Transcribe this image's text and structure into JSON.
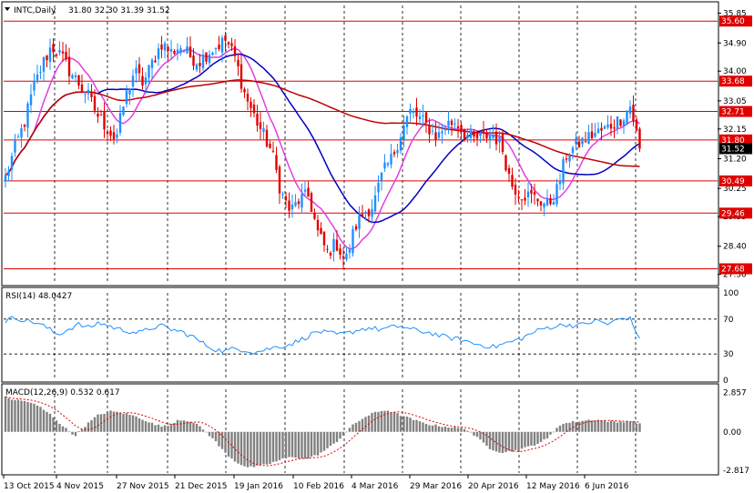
{
  "header": {
    "symbol": "INTC,Daily",
    "ohlc": "31.80 32.30 31.39 31.52"
  },
  "chart_data": {
    "type": "candlestick",
    "price_axis": {
      "ylim": [
        27.2,
        36.1
      ],
      "ticks": [
        "35.85",
        "34.90",
        "34.00",
        "33.05",
        "32.15",
        "31.20",
        "30.25",
        "29.35",
        "28.40",
        "27.50"
      ],
      "tick_values": [
        35.85,
        34.9,
        34.0,
        33.05,
        32.15,
        31.2,
        30.25,
        29.35,
        28.4,
        27.5
      ]
    },
    "horizontal_levels": [
      {
        "label": "35.60",
        "value": 35.6,
        "color": "#e00000"
      },
      {
        "label": "33.68",
        "value": 33.68,
        "color": "#e00000"
      },
      {
        "label": "32.71",
        "value": 32.71,
        "color": "#e00000"
      },
      {
        "label": "31.80",
        "value": 31.8,
        "color": "#e00000"
      },
      {
        "label": "30.49",
        "value": 30.49,
        "color": "#e00000"
      },
      {
        "label": "29.46",
        "value": 29.46,
        "color": "#e00000"
      },
      {
        "label": "27.68",
        "value": 27.68,
        "color": "#e00000"
      }
    ],
    "current_price": {
      "label": "31.52",
      "value": 31.52
    },
    "x_labels": [
      "13 Oct 2015",
      "4 Nov 2015",
      "27 Nov 2015",
      "21 Dec 2015",
      "19 Jan 2016",
      "10 Feb 2016",
      "4 Mar 2016",
      "29 Mar 2016",
      "20 Apr 2016",
      "12 May 2016",
      "6 Jun 2016"
    ],
    "close_anchors": [
      30.6,
      31.5,
      32.3,
      33.4,
      34.2,
      34.8,
      34.5,
      34.0,
      33.6,
      33.2,
      32.6,
      32.2,
      31.8,
      33.1,
      34.0,
      33.6,
      34.3,
      34.9,
      34.6,
      34.8,
      34.5,
      34.3,
      34.6,
      34.8,
      35.0,
      34.4,
      33.3,
      32.6,
      32.0,
      31.4,
      30.1,
      29.5,
      29.9,
      30.0,
      28.8,
      28.2,
      28.5,
      27.9,
      29.0,
      29.5,
      29.7,
      30.7,
      31.2,
      32.0,
      32.7,
      32.5,
      32.2,
      31.9,
      32.3,
      32.4,
      32.0,
      31.8,
      31.9,
      32.0,
      31.6,
      30.4,
      30.1,
      30.0,
      29.9,
      29.7,
      30.2,
      31.3,
      31.6,
      31.8,
      32.0,
      32.1,
      32.3,
      32.5,
      32.9,
      31.52
    ],
    "colors": {
      "up": "#1e90ff",
      "down": "#e00000",
      "ma_fast": "#e040e0",
      "ma_mid": "#0000c0",
      "ma_slow": "#c00000"
    },
    "rsi": {
      "label": "RSI(14) 48.0427",
      "ticks": [
        "100",
        "70",
        "30",
        "0"
      ],
      "tick_values": [
        100,
        70,
        30,
        0
      ],
      "levels": [
        70,
        30
      ],
      "anchors": [
        68,
        72,
        68,
        66,
        60,
        52,
        58,
        64,
        60,
        66,
        62,
        58,
        56,
        54,
        60,
        62,
        58,
        55,
        50,
        42,
        36,
        33,
        36,
        35,
        32,
        35,
        38,
        40,
        44,
        50,
        56,
        54,
        52,
        54,
        58,
        60,
        58,
        60,
        62,
        58,
        56,
        54,
        50,
        48,
        46,
        42,
        40,
        38,
        42,
        45,
        50,
        56,
        60,
        62,
        64,
        62,
        66,
        68,
        64,
        70,
        72,
        48
      ]
    },
    "macd": {
      "label": "MACD(12,26,9) 0.532 0.617",
      "ticks": [
        "2.857",
        "0.00",
        "-2.817"
      ],
      "tick_values": [
        2.857,
        0,
        -2.817
      ],
      "ylim": [
        -3.0,
        3.1
      ],
      "hist_anchors": [
        2.5,
        2.3,
        2.2,
        1.8,
        1.2,
        0.4,
        -0.3,
        0.5,
        1.2,
        1.5,
        1.4,
        1.2,
        0.9,
        0.5,
        0.4,
        0.9,
        0.8,
        0.3,
        -0.5,
        -1.5,
        -2.2,
        -2.6,
        -2.5,
        -2.3,
        -2.0,
        -1.8,
        -2.0,
        -1.7,
        -1.2,
        -0.5,
        0.4,
        1.0,
        1.4,
        1.6,
        1.3,
        1.0,
        0.7,
        0.5,
        0.4,
        0.3,
        0.2,
        -0.5,
        -1.2,
        -1.5,
        -1.4,
        -1.2,
        -0.9,
        -0.5,
        0.5,
        0.7,
        0.8,
        0.9,
        0.8,
        0.7,
        0.8,
        0.6
      ],
      "signal_color": "#e00000",
      "hist_color": "#808080"
    }
  }
}
